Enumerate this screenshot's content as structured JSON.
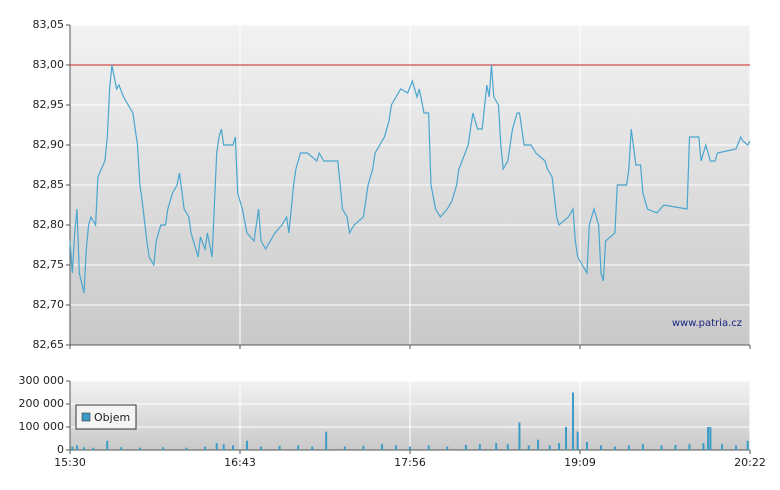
{
  "chart_data": [
    {
      "type": "line",
      "color": "#4aa6cf",
      "annotation": "www.patria.cz",
      "hline": {
        "value": 83.0,
        "color": "#cc2222"
      },
      "xlim": [
        "15:30",
        "20:22"
      ],
      "ylim": [
        82.65,
        83.05
      ],
      "yticks": [
        {
          "value": 82.65,
          "label": "82,65"
        },
        {
          "value": 82.7,
          "label": "82,70"
        },
        {
          "value": 82.75,
          "label": "82,75"
        },
        {
          "value": 82.8,
          "label": "82,80"
        },
        {
          "value": 82.85,
          "label": "82,85"
        },
        {
          "value": 82.9,
          "label": "82,90"
        },
        {
          "value": 82.95,
          "label": "82,95"
        },
        {
          "value": 83.0,
          "label": "83,00"
        },
        {
          "value": 83.05,
          "label": "83,05"
        }
      ],
      "grid": true,
      "x": [
        "15:30",
        "15:31",
        "15:32",
        "15:33",
        "15:34",
        "15:36",
        "15:37",
        "15:38",
        "15:39",
        "15:41",
        "15:42",
        "15:45",
        "15:46",
        "15:47",
        "15:48",
        "15:50",
        "15:51",
        "15:53",
        "15:55",
        "15:57",
        "15:59",
        "16:00",
        "16:01",
        "16:03",
        "16:04",
        "16:06",
        "16:07",
        "16:09",
        "16:11",
        "16:12",
        "16:14",
        "16:16",
        "16:17",
        "16:19",
        "16:21",
        "16:22",
        "16:25",
        "16:26",
        "16:28",
        "16:29",
        "16:31",
        "16:33",
        "16:34",
        "16:35",
        "16:36",
        "16:40",
        "16:41",
        "16:42",
        "16:44",
        "16:46",
        "16:49",
        "16:51",
        "16:52",
        "16:54",
        "16:58",
        "17:01",
        "17:03",
        "17:04",
        "17:06",
        "17:07",
        "17:09",
        "17:12",
        "17:16",
        "17:17",
        "17:19",
        "17:25",
        "17:27",
        "17:29",
        "17:30",
        "17:32",
        "17:36",
        "17:38",
        "17:40",
        "17:41",
        "17:45",
        "17:47",
        "17:48",
        "17:50",
        "17:52",
        "17:55",
        "17:57",
        "17:59",
        "18:00",
        "18:02",
        "18:04",
        "18:05",
        "18:07",
        "18:09",
        "18:12",
        "18:14",
        "18:16",
        "18:17",
        "18:19",
        "18:21",
        "18:22",
        "18:23",
        "18:25",
        "18:27",
        "18:29",
        "18:30",
        "18:31",
        "18:32",
        "18:34",
        "18:35",
        "18:36",
        "18:38",
        "18:40",
        "18:42",
        "18:43",
        "18:45",
        "18:48",
        "18:50",
        "18:54",
        "18:55",
        "18:57",
        "18:59",
        "19:00",
        "19:04",
        "19:06",
        "19:07",
        "19:08",
        "19:10",
        "19:12",
        "19:13",
        "19:15",
        "19:17",
        "19:18",
        "19:19",
        "19:20",
        "19:24",
        "19:25",
        "19:29",
        "19:30",
        "19:31",
        "19:33",
        "19:35",
        "19:36",
        "19:38",
        "19:42",
        "19:45",
        "19:55",
        "19:56",
        "20:00",
        "20:01",
        "20:03",
        "20:05",
        "20:07",
        "20:08",
        "20:16",
        "20:18",
        "20:19",
        "20:21",
        "20:22"
      ],
      "values": [
        82.78,
        82.74,
        82.79,
        82.82,
        82.74,
        82.715,
        82.77,
        82.8,
        82.81,
        82.8,
        82.86,
        82.88,
        82.91,
        82.97,
        83.0,
        82.97,
        82.975,
        82.96,
        82.95,
        82.94,
        82.9,
        82.85,
        82.83,
        82.78,
        82.76,
        82.75,
        82.78,
        82.8,
        82.8,
        82.82,
        82.84,
        82.85,
        82.865,
        82.82,
        82.81,
        82.79,
        82.76,
        82.785,
        82.77,
        82.79,
        82.76,
        82.89,
        82.91,
        82.92,
        82.9,
        82.9,
        82.91,
        82.84,
        82.82,
        82.79,
        82.78,
        82.82,
        82.78,
        82.77,
        82.79,
        82.8,
        82.81,
        82.79,
        82.85,
        82.87,
        82.89,
        82.89,
        82.88,
        82.89,
        82.88,
        82.88,
        82.82,
        82.81,
        82.79,
        82.8,
        82.81,
        82.85,
        82.87,
        82.89,
        82.91,
        82.93,
        82.95,
        82.96,
        82.97,
        82.965,
        82.98,
        82.96,
        82.97,
        82.94,
        82.94,
        82.85,
        82.82,
        82.81,
        82.82,
        82.83,
        82.85,
        82.87,
        82.885,
        82.9,
        82.92,
        82.94,
        82.92,
        82.92,
        82.975,
        82.96,
        83.0,
        82.96,
        82.95,
        82.9,
        82.87,
        82.88,
        82.92,
        82.94,
        82.94,
        82.9,
        82.9,
        82.89,
        82.88,
        82.87,
        82.86,
        82.81,
        82.8,
        82.81,
        82.82,
        82.78,
        82.76,
        82.75,
        82.74,
        82.8,
        82.82,
        82.8,
        82.74,
        82.73,
        82.78,
        82.79,
        82.85,
        82.85,
        82.87,
        82.92,
        82.875,
        82.875,
        82.84,
        82.82,
        82.815,
        82.825,
        82.82,
        82.91,
        82.91,
        82.88,
        82.9,
        82.88,
        82.88,
        82.89,
        82.895,
        82.91,
        82.905,
        82.9,
        82.905
      ]
    },
    {
      "type": "bar",
      "xlim": [
        "15:30",
        "20:22"
      ],
      "xticks": [
        "15:30",
        "16:43",
        "17:56",
        "19:09",
        "20:22"
      ],
      "ylim": [
        0,
        300000
      ],
      "yticks": [
        0,
        {
          "value": 100000,
          "label": "100 000"
        },
        {
          "value": 200000,
          "label": "200 000"
        },
        {
          "value": 300000,
          "label": "300 000"
        }
      ],
      "grid": true,
      "legend": "upper-left",
      "x": [
        "15:31",
        "15:33",
        "15:36",
        "15:40",
        "15:46",
        "15:52",
        "16:00",
        "16:10",
        "16:20",
        "16:28",
        "16:33",
        "16:36",
        "16:40",
        "16:46",
        "16:52",
        "17:00",
        "17:08",
        "17:14",
        "17:20",
        "17:28",
        "17:36",
        "17:44",
        "17:50",
        "17:56",
        "18:04",
        "18:12",
        "18:20",
        "18:26",
        "18:33",
        "18:38",
        "18:43",
        "18:47",
        "18:51",
        "18:56",
        "19:00",
        "19:03",
        "19:06",
        "19:08",
        "19:12",
        "19:18",
        "19:24",
        "19:30",
        "19:36",
        "19:44",
        "19:50",
        "19:56",
        "20:02",
        "20:04",
        "20:05",
        "20:10",
        "20:16",
        "20:21"
      ],
      "series": [
        {
          "name": "Objem",
          "color": "#3d9cc6",
          "values": [
            15000,
            20000,
            12000,
            10000,
            40000,
            12000,
            10000,
            12000,
            10000,
            15000,
            30000,
            25000,
            20000,
            40000,
            15000,
            18000,
            20000,
            15000,
            80000,
            15000,
            18000,
            25000,
            20000,
            15000,
            20000,
            15000,
            22000,
            25000,
            30000,
            25000,
            120000,
            20000,
            45000,
            20000,
            30000,
            100000,
            250000,
            80000,
            35000,
            20000,
            15000,
            20000,
            25000,
            20000,
            22000,
            25000,
            30000,
            100000,
            100000,
            25000,
            20000,
            40000
          ]
        }
      ]
    }
  ]
}
